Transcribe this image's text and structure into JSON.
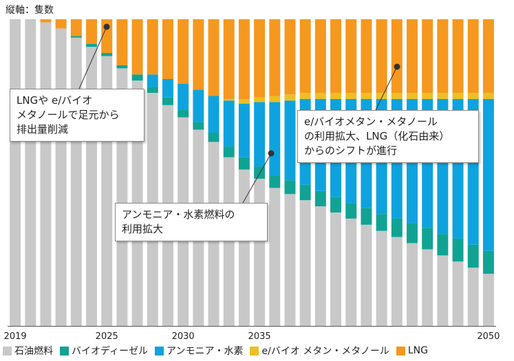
{
  "chart_data": {
    "type": "bar",
    "stacked": true,
    "ylabel": "縦軸：隻数",
    "x": [
      2019,
      2020,
      2021,
      2022,
      2023,
      2024,
      2025,
      2026,
      2027,
      2028,
      2029,
      2030,
      2031,
      2032,
      2033,
      2034,
      2035,
      2036,
      2037,
      2038,
      2039,
      2040,
      2041,
      2042,
      2043,
      2044,
      2045,
      2046,
      2047,
      2048,
      2049,
      2050
    ],
    "x_tick_labels": [
      "2019",
      "2025",
      "2030",
      "2035",
      "2050"
    ],
    "x_tick_years": [
      2019,
      2025,
      2030,
      2035,
      2050
    ],
    "series": [
      {
        "name": "石油燃料",
        "color": "#c8c8c8",
        "values": [
          100,
          100,
          99,
          97,
          94,
          91,
          88,
          84,
          80,
          76,
          72,
          68,
          64,
          60,
          55,
          51,
          48,
          45,
          43,
          41,
          39,
          37,
          35,
          33,
          31,
          29,
          27,
          25,
          23,
          21,
          19,
          17
        ]
      },
      {
        "name": "バイオディーゼル",
        "color": "#10a393",
        "values": [
          0,
          0,
          0,
          0,
          0.5,
          1,
          1,
          1,
          2,
          2,
          2.5,
          2.5,
          2.5,
          3,
          3.5,
          4,
          4,
          4,
          4.5,
          5,
          5,
          5,
          5,
          5.5,
          5.5,
          6,
          6.5,
          7,
          7,
          7.5,
          7.5,
          7.5
        ]
      },
      {
        "name": "アンモニア・水素",
        "color": "#0ea3de",
        "values": [
          0,
          0,
          0,
          0,
          0,
          0,
          0,
          0,
          0,
          4,
          6,
          8.5,
          10.5,
          12,
          15,
          17.5,
          21,
          24,
          26,
          28,
          30,
          32,
          34,
          35.5,
          37.5,
          39,
          40.5,
          42,
          44,
          45.5,
          47.5,
          49.5
        ]
      },
      {
        "name": "e/バイオ メタン・メタノール",
        "color": "#ecbf23",
        "values": [
          0,
          0,
          0,
          0,
          0,
          0,
          0,
          0,
          0,
          0,
          0,
          0,
          0,
          0,
          0.5,
          1.5,
          1.5,
          2,
          2,
          2,
          2,
          2,
          2,
          2,
          2,
          2,
          2,
          2,
          2,
          2,
          2,
          2
        ]
      },
      {
        "name": "LNG",
        "color": "#f5981f",
        "values": [
          0,
          0,
          1,
          3,
          5.5,
          8,
          11,
          15,
          18,
          18,
          19.5,
          21,
          23,
          25,
          26,
          26,
          25.5,
          25,
          24.5,
          24,
          24,
          24,
          24,
          24,
          24,
          24,
          24,
          24,
          24,
          24,
          24,
          24
        ]
      }
    ],
    "ylim": [
      0,
      100
    ],
    "grid": false,
    "legend": "bottom"
  },
  "callouts": [
    {
      "lines": [
        "LNGや e/バイオ",
        "メタノールで足元から",
        "排出量削減"
      ]
    },
    {
      "lines": [
        "e/バイオメタン・メタノール",
        "の利用拡大、LNG（化石由来）",
        "からのシフトが進行"
      ]
    },
    {
      "lines": [
        "アンモニア・水素燃料の",
        "利用拡大"
      ]
    }
  ]
}
